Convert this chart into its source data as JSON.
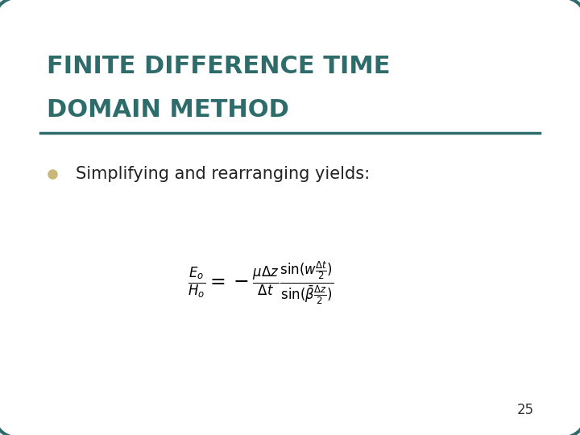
{
  "title_line1": "FINITE DIFFERENCE TIME",
  "title_line2": "DOMAIN METHOD",
  "title_color": "#2E6B6B",
  "bullet_text": "Simplifying and rearranging yields:",
  "bullet_color": "#C8B97A",
  "page_number": "25",
  "bg_color": "#FFFFFF",
  "border_color": "#2E6B6B",
  "formula": "\\frac{E_o}{H_o} = -\\frac{\\mu\\Delta z}{\\Delta t}\\frac{\\sin(w\\frac{\\Delta t}{2})}{\\sin(\\bar{\\beta}\\frac{\\Delta z}{2})}",
  "formula_color": "#000000",
  "slide_bg": "#F0F0F0"
}
